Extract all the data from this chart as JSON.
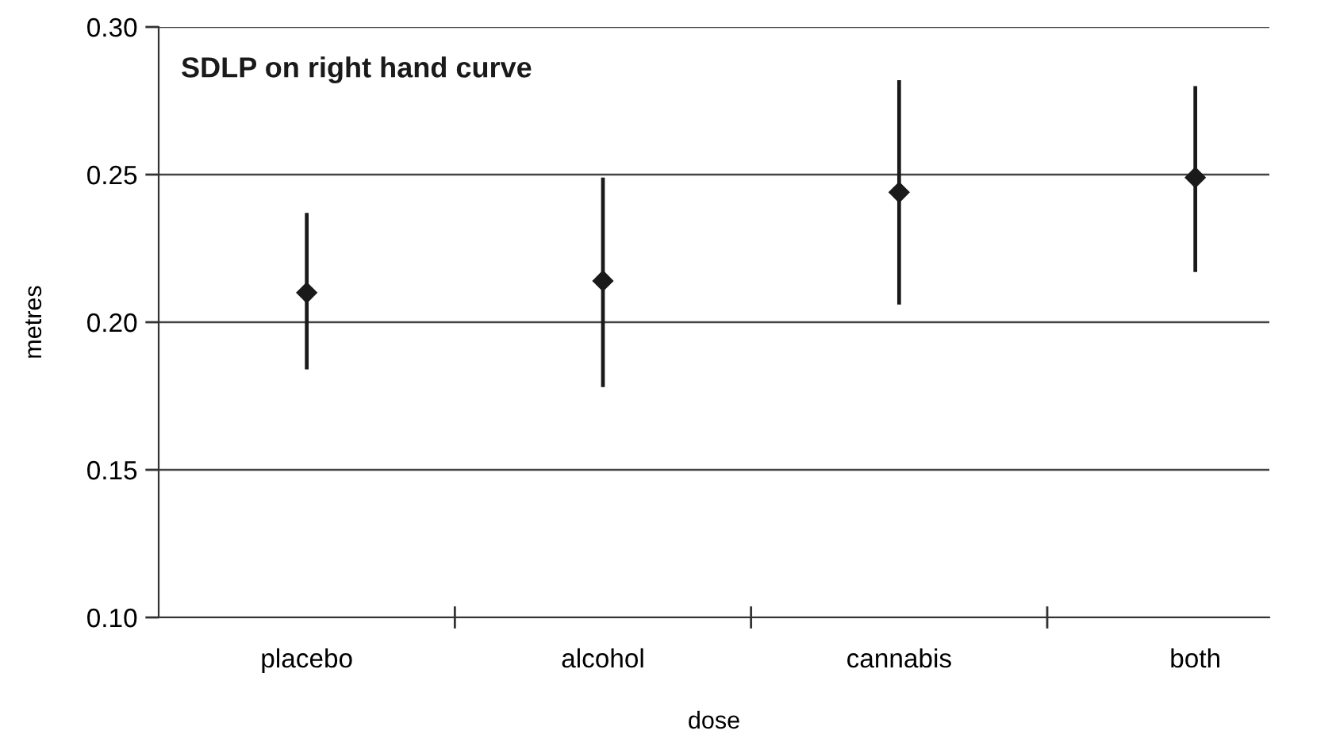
{
  "chart_data": {
    "type": "scatter",
    "title": "SDLP on right hand curve",
    "xlabel": "dose",
    "ylabel": "metres",
    "categories": [
      "placebo",
      "alcohol",
      "cannabis",
      "both"
    ],
    "series": [
      {
        "color": "#1a1a1a",
        "values": [
          0.21,
          0.214,
          0.244,
          0.249
        ],
        "errors": [
          [
            0.184,
            0.237
          ],
          [
            0.178,
            0.249
          ],
          [
            0.206,
            0.282
          ],
          [
            0.217,
            0.28
          ]
        ]
      }
    ],
    "ylim": [
      0.1,
      0.3
    ],
    "yticks": [
      {
        "value": 0.1,
        "label": "0.10"
      },
      {
        "value": 0.15,
        "label": "0.15"
      },
      {
        "value": 0.2,
        "label": "0.20"
      },
      {
        "value": 0.25,
        "label": "0.25"
      },
      {
        "value": 0.3,
        "label": "0.30"
      }
    ],
    "grid": "y",
    "marker": "diamond"
  }
}
